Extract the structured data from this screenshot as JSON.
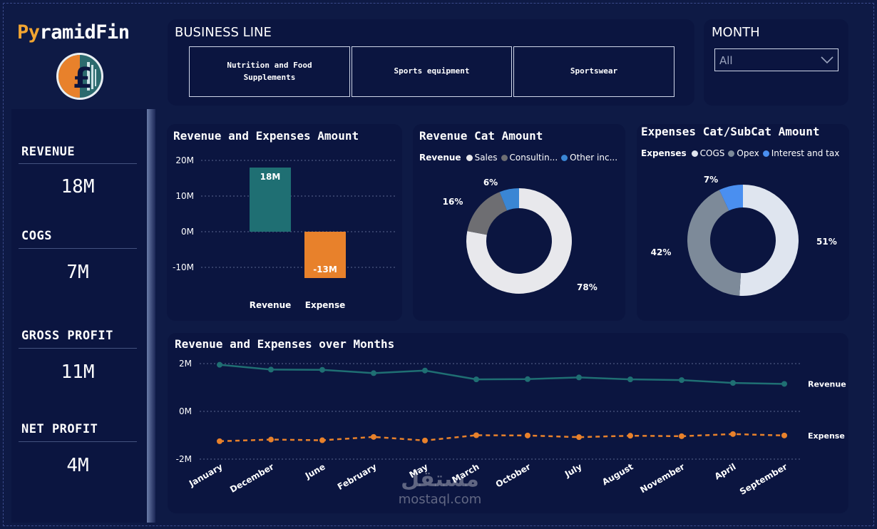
{
  "brand": {
    "title_accent": "Py",
    "title_rest": "ramidFin",
    "logo_icon": "pound-coin-logo-icon"
  },
  "kpis": [
    {
      "label": "REVENUE",
      "value": "18M"
    },
    {
      "label": "COGS",
      "value": "7M"
    },
    {
      "label": "GROSS PROFIT",
      "value": "11M"
    },
    {
      "label": "NET PROFIT",
      "value": "4M"
    }
  ],
  "business_line": {
    "title": "BUSINESS LINE",
    "options": [
      "Nutrition and Food Supplements",
      "Sports equipment",
      "Sportswear"
    ]
  },
  "month": {
    "title": "MONTH",
    "selected": "All",
    "icon": "chevron-down-icon"
  },
  "colors": {
    "revenue": "#1f6f73",
    "expense": "#e8812b",
    "background": "#0e1a45",
    "panel": "#0b1540"
  },
  "chart_data": [
    {
      "type": "bar",
      "title": "Revenue and Expenses Amount",
      "categories": [
        "Revenue",
        "Expense"
      ],
      "values": [
        18,
        -13
      ],
      "data_labels": [
        "18M",
        "-13M"
      ],
      "y_ticks": [
        "20M",
        "10M",
        "0M",
        "-10M"
      ],
      "ylim": [
        -14,
        22
      ],
      "grid": true
    },
    {
      "type": "pie",
      "title": "Revenue Cat Amount",
      "legend_title": "Revenue",
      "legend_labels": [
        "Sales",
        "Consultin...",
        "Other inc..."
      ],
      "values": [
        78,
        16,
        6
      ],
      "data_labels": [
        "78%",
        "16%",
        "6%"
      ],
      "colors": [
        "#e8e8ec",
        "#6e6e72",
        "#3a86d4"
      ]
    },
    {
      "type": "pie",
      "title": "Expenses Cat/SubCat Amount",
      "legend_title": "Expenses",
      "legend_labels": [
        "COGS",
        "Opex",
        "Interest and tax"
      ],
      "values": [
        51,
        42,
        7
      ],
      "data_labels": [
        "51%",
        "42%",
        "7%"
      ],
      "colors": [
        "#dfe5ef",
        "#7d8a99",
        "#4a8ff0"
      ]
    },
    {
      "type": "line",
      "title": "Revenue and Expenses over Months",
      "categories": [
        "January",
        "December",
        "June",
        "February",
        "May",
        "March",
        "October",
        "July",
        "August",
        "November",
        "April",
        "September"
      ],
      "y_ticks": [
        "2M",
        "0M",
        "-2M"
      ],
      "ylim": [
        -2,
        2
      ],
      "series": [
        {
          "name": "Revenue",
          "values": [
            1.95,
            1.75,
            1.74,
            1.6,
            1.71,
            1.34,
            1.35,
            1.42,
            1.34,
            1.31,
            1.19,
            1.15
          ]
        },
        {
          "name": "Expense",
          "values": [
            -1.25,
            -1.18,
            -1.21,
            -1.07,
            -1.22,
            -1.0,
            -1.01,
            -1.08,
            -1.02,
            -1.04,
            -0.95,
            -1.01
          ]
        }
      ],
      "grid": true
    }
  ],
  "watermark": {
    "arabic": "مستقل",
    "latin": "mostaql.com"
  }
}
